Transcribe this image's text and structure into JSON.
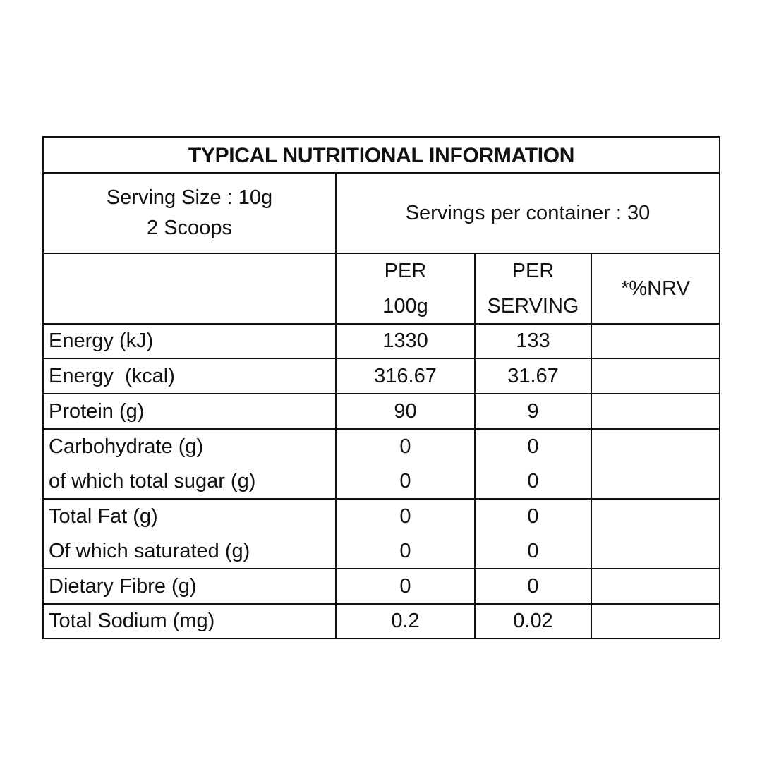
{
  "title": "TYPICAL NUTRITIONAL INFORMATION",
  "serving": {
    "size_line1": "Serving Size : 10g",
    "size_line2": "2 Scoops",
    "per_container": "Servings per container : 30"
  },
  "columns": {
    "per100_line1": "PER",
    "per100_line2": "100g",
    "perserving_line1": "PER",
    "perserving_line2": "SERVING",
    "nrv": "*%NRV"
  },
  "rows": [
    {
      "label": "Energy (kJ)",
      "per100": "1330",
      "per_serving": "133",
      "nrv": ""
    },
    {
      "label": "Energy  (kcal)",
      "per100": "316.67",
      "per_serving": "31.67",
      "nrv": ""
    },
    {
      "label": "Protein (g)",
      "per100": "90",
      "per_serving": "9",
      "nrv": ""
    },
    {
      "label": "Carbohydrate (g)",
      "per100": "0",
      "per_serving": "0",
      "nrv": ""
    },
    {
      "label": "of which total sugar (g)",
      "per100": "0",
      "per_serving": "0",
      "nrv": ""
    },
    {
      "label": "Total Fat (g)",
      "per100": "0",
      "per_serving": "0",
      "nrv": ""
    },
    {
      "label": "Of which saturated (g)",
      "per100": "0",
      "per_serving": "0",
      "nrv": ""
    },
    {
      "label": "Dietary Fibre (g)",
      "per100": "0",
      "per_serving": "0",
      "nrv": ""
    },
    {
      "label": "Total Sodium (mg)",
      "per100": "0.2",
      "per_serving": "0.02",
      "nrv": ""
    }
  ]
}
